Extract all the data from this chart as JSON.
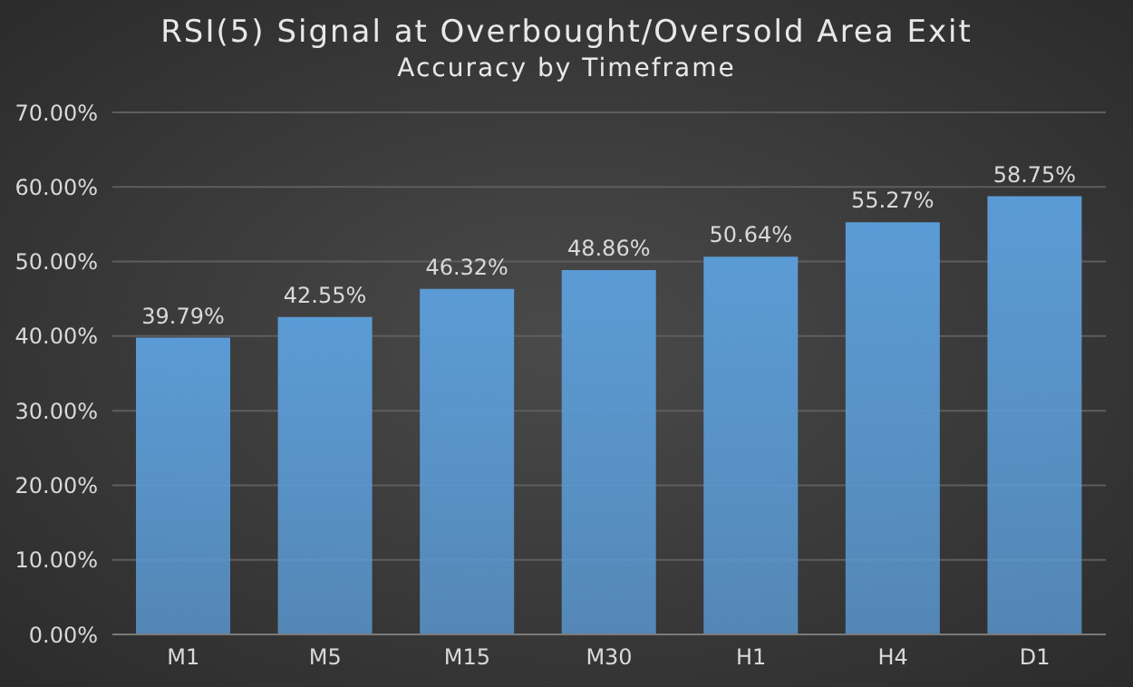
{
  "chart_data": {
    "type": "bar",
    "title": "RSI(5) Signal at Overbought/Oversold Area Exit",
    "subtitle": "Accuracy by Timeframe",
    "categories": [
      "M1",
      "M5",
      "M15",
      "M30",
      "H1",
      "H4",
      "D1"
    ],
    "values": [
      39.79,
      42.55,
      46.32,
      48.86,
      50.64,
      55.27,
      58.75
    ],
    "value_labels": [
      "39.79%",
      "42.55%",
      "46.32%",
      "48.86%",
      "50.64%",
      "55.27%",
      "58.75%"
    ],
    "color": "#5b9bd5",
    "ylim": [
      0,
      70
    ],
    "yticks": [
      {
        "value": 0,
        "label": "0.00%"
      },
      {
        "value": 10,
        "label": "10.00%"
      },
      {
        "value": 20,
        "label": "20.00%"
      },
      {
        "value": 30,
        "label": "30.00%"
      },
      {
        "value": 40,
        "label": "40.00%"
      },
      {
        "value": 50,
        "label": "50.00%"
      },
      {
        "value": 60,
        "label": "60.00%"
      },
      {
        "value": 70,
        "label": "70.00%"
      }
    ],
    "grid": "y"
  }
}
